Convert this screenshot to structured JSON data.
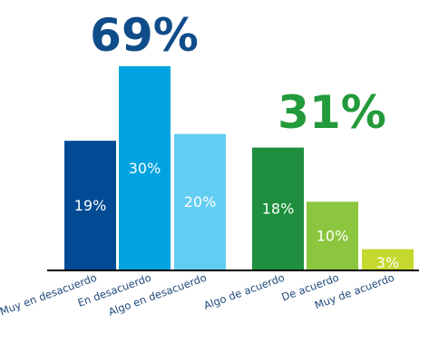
{
  "chart_data": {
    "type": "bar",
    "categories": [
      "Muy en desacuerdo",
      "En desacuerdo",
      "Algo en desacuerdo",
      "Algo de acuerdo",
      "De acuerdo",
      "Muy de acuerdo"
    ],
    "values": [
      19,
      30,
      20,
      18,
      10,
      3
    ],
    "data_labels": [
      "19%",
      "30%",
      "20%",
      "18%",
      "10%",
      "3%"
    ],
    "bar_colors": [
      "#004b93",
      "#00a3e0",
      "#62cdf2",
      "#1f8f3f",
      "#8cc63f",
      "#c4d82e"
    ],
    "label_colors": [
      "#ffffff",
      "#ffffff",
      "#ffffff",
      "#ffffff",
      "#ffffff",
      "#ffffff"
    ],
    "group_totals": [
      {
        "label": "69%",
        "value": 69,
        "color": "#0f4c8a"
      },
      {
        "label": "31%",
        "value": 31,
        "color": "#239a3b"
      }
    ],
    "title": "",
    "xlabel": "",
    "ylabel": "",
    "ylim": [
      0,
      30
    ],
    "grid": false,
    "legend": "none",
    "axis_color": "#000000",
    "category_label_color": "#1f4a7a"
  }
}
